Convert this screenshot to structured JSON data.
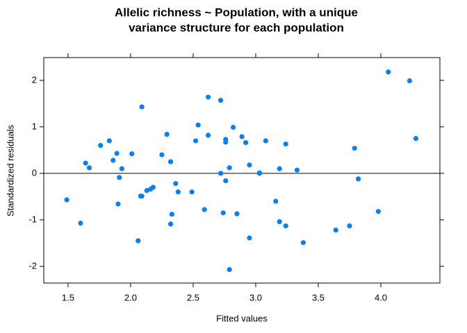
{
  "chart_data": {
    "type": "scatter",
    "title": [
      "Allelic richness ~ Population, with a unique",
      "variance structure for each population"
    ],
    "x_label": "Fitted values",
    "y_label": "Standardized residuals",
    "color": "#0a7ff0",
    "hline": 0,
    "xlim": [
      1.306,
      4.472
    ],
    "ylim": [
      -2.36,
      2.49
    ],
    "xticks": [
      1.5,
      {
        "value": 2,
        "label": "2.0"
      },
      2.5,
      {
        "value": 3,
        "label": "3.0"
      },
      3.5,
      {
        "value": 4,
        "label": "4.0"
      }
    ],
    "yticks": [
      -2,
      -1,
      0,
      1,
      2
    ],
    "x": [
      1.49,
      1.6,
      1.64,
      1.67,
      1.76,
      1.83,
      1.86,
      1.89,
      1.91,
      1.9,
      1.93,
      2.01,
      2.09,
      2.06,
      2.08,
      2.09,
      2.13,
      2.16,
      2.18,
      2.25,
      2.29,
      2.32,
      2.32,
      2.33,
      2.36,
      2.38,
      2.49,
      2.52,
      2.54,
      2.59,
      2.62,
      2.62,
      2.72,
      2.72,
      2.74,
      2.76,
      2.76,
      2.76,
      2.79,
      2.79,
      2.82,
      2.85,
      2.89,
      2.92,
      2.95,
      2.95,
      3.03,
      3.03,
      3.08,
      3.16,
      3.19,
      3.19,
      3.24,
      3.24,
      3.33,
      3.38,
      3.64,
      3.75,
      3.79,
      3.82,
      3.98,
      4.06,
      4.23,
      4.28
    ],
    "values": [
      -0.57,
      -1.07,
      0.22,
      0.12,
      0.6,
      0.7,
      0.28,
      0.43,
      -0.09,
      -0.66,
      0.1,
      0.42,
      1.43,
      -1.45,
      -0.49,
      -0.49,
      -0.37,
      -0.34,
      -0.3,
      0.4,
      0.84,
      0.25,
      -1.09,
      -0.88,
      -0.22,
      -0.4,
      -0.4,
      0.7,
      1.04,
      -0.78,
      1.64,
      0.82,
      1.57,
      0.0,
      -0.85,
      0.73,
      0.67,
      -0.16,
      0.12,
      -2.07,
      0.99,
      -0.87,
      0.79,
      0.66,
      -1.39,
      0.18,
      0.01,
      0.0,
      0.7,
      -0.6,
      0.1,
      -1.04,
      0.63,
      -1.13,
      0.07,
      -1.49,
      -1.22,
      -1.13,
      0.54,
      -0.12,
      -0.82,
      2.18,
      1.99,
      0.75
    ]
  }
}
